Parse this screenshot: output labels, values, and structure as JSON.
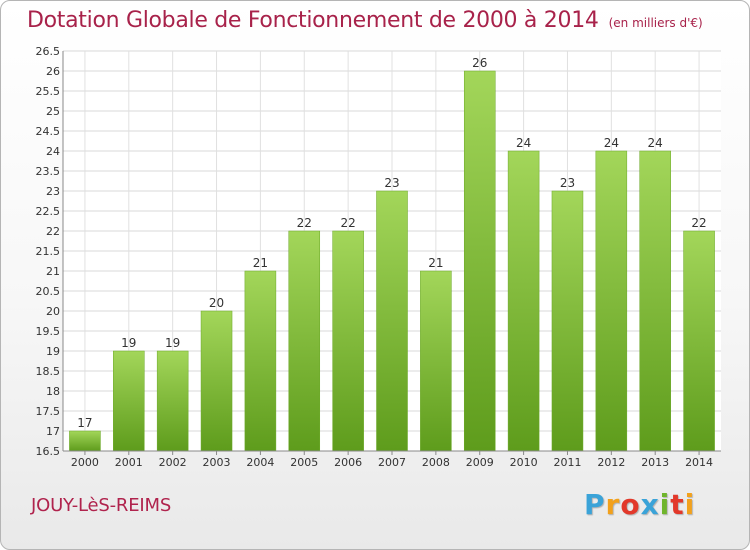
{
  "header": {
    "title": "Dotation Globale de Fonctionnement de 2000 à 2014",
    "unit": "(en milliers d'€)"
  },
  "footer": {
    "city": "JOUY-LèS-REIMS",
    "logo_letters": [
      "P",
      "r",
      "o",
      "x",
      "i",
      "t",
      "i"
    ],
    "logo_colors": [
      "#3aa3d8",
      "#f2a11c",
      "#e2382a",
      "#3aa3d8",
      "#6fb52c",
      "#e2382a",
      "#f2a11c"
    ]
  },
  "chart_data": {
    "type": "bar",
    "title": "Dotation Globale de Fonctionnement de 2000 à 2014",
    "categories": [
      "2000",
      "2001",
      "2002",
      "2003",
      "2004",
      "2005",
      "2006",
      "2007",
      "2008",
      "2009",
      "2010",
      "2011",
      "2012",
      "2013",
      "2014"
    ],
    "values": [
      17,
      19,
      19,
      20,
      21,
      22,
      22,
      23,
      21,
      26,
      24,
      23,
      24,
      24,
      22
    ],
    "ylim": [
      16.5,
      26.5
    ],
    "yticks": [
      "16.5",
      "17",
      "17.5",
      "18",
      "18.5",
      "19",
      "19.5",
      "20",
      "20.5",
      "21",
      "21.5",
      "22",
      "22.5",
      "23",
      "23.5",
      "24",
      "24.5",
      "25",
      "25.5",
      "26",
      "26.5"
    ],
    "grid": true,
    "bar_color": "#7cbf30",
    "bar_color_light": "#a3d65a",
    "bar_color_dark": "#5e9c1c"
  }
}
